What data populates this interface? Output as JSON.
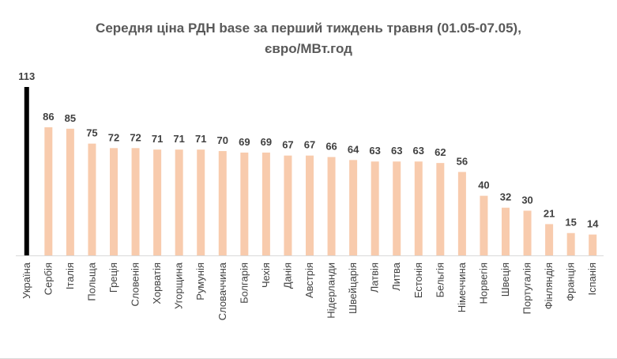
{
  "chart_data": {
    "type": "bar",
    "title_line1": "Середня ціна РДН base за перший тиждень травня (01.05-07.05),",
    "title_line2": "євро/МВт.год",
    "categories": [
      "Україна",
      "Сербія",
      "Італія",
      "Польща",
      "Греція",
      "Словенія",
      "Хорватія",
      "Угорщина",
      "Румунія",
      "Словаччина",
      "Болгарія",
      "Чехія",
      "Данія",
      "Австрія",
      "Нідерланди",
      "Швейцарія",
      "Латвія",
      "Литва",
      "Естонія",
      "Бельгія",
      "Німеччина",
      "Норвегія",
      "Швеція",
      "Португалія",
      "Фінляндія",
      "Франція",
      "Іспанія"
    ],
    "values": [
      113,
      86,
      85,
      75,
      72,
      72,
      71,
      71,
      71,
      70,
      69,
      69,
      67,
      67,
      66,
      64,
      63,
      63,
      63,
      62,
      56,
      40,
      32,
      30,
      21,
      15,
      14
    ],
    "highlight_index": 0,
    "colors": {
      "highlight": "#000000",
      "bar": "#f8cbad",
      "axis": "#d9d9d9",
      "text": "#404040",
      "title": "#595959"
    },
    "ylim": [
      0,
      113
    ],
    "legend": "none",
    "grid": false
  }
}
